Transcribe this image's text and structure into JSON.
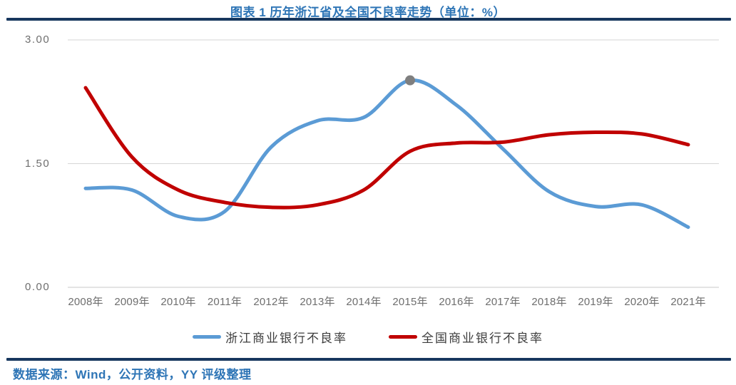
{
  "header": {
    "title": "图表 1 历年浙江省及全国不良率走势（单位：%）"
  },
  "chart_data": {
    "type": "line",
    "title": "图表 1 历年浙江省及全国不良率走势（单位：%）",
    "unit": "%",
    "categories": [
      "2008年",
      "2009年",
      "2010年",
      "2011年",
      "2012年",
      "2013年",
      "2014年",
      "2015年",
      "2016年",
      "2017年",
      "2018年",
      "2019年",
      "2020年",
      "2021年"
    ],
    "series": [
      {
        "name": "浙江商业银行不良率",
        "color": "#5B9BD5",
        "values": [
          1.2,
          1.18,
          0.86,
          0.92,
          1.7,
          2.02,
          2.06,
          2.51,
          2.21,
          1.68,
          1.16,
          0.98,
          1.0,
          0.73
        ],
        "marker": {
          "index": 7,
          "color": "#7f7f7f",
          "radius": 7
        }
      },
      {
        "name": "全国商业银行不良率",
        "color": "#C00000",
        "values": [
          2.42,
          1.58,
          1.18,
          1.03,
          0.97,
          1.0,
          1.18,
          1.65,
          1.75,
          1.76,
          1.85,
          1.88,
          1.86,
          1.73
        ],
        "marker": null
      }
    ],
    "ylim": [
      0,
      3
    ],
    "yticks": [
      0.0,
      1.5,
      3.0
    ],
    "ytick_labels": [
      "0.00",
      "1.50",
      "3.00"
    ],
    "xlabel": "",
    "ylabel": "",
    "grid": "horizontal",
    "legend_position": "bottom"
  },
  "legend": {
    "items": [
      {
        "label": "浙江商业银行不良率",
        "color": "#5B9BD5"
      },
      {
        "label": "全国商业银行不良率",
        "color": "#C00000"
      }
    ]
  },
  "footer": {
    "source": "数据来源：Wind，公开资料，YY 评级整理"
  },
  "colors": {
    "title_text": "#2E75B6",
    "divider": "#17375E",
    "grid_line": "#D6D6D6",
    "axis_line": "#C9C9C9",
    "axis_text": "#6E6E6E",
    "source_text": "#2E75B6"
  }
}
